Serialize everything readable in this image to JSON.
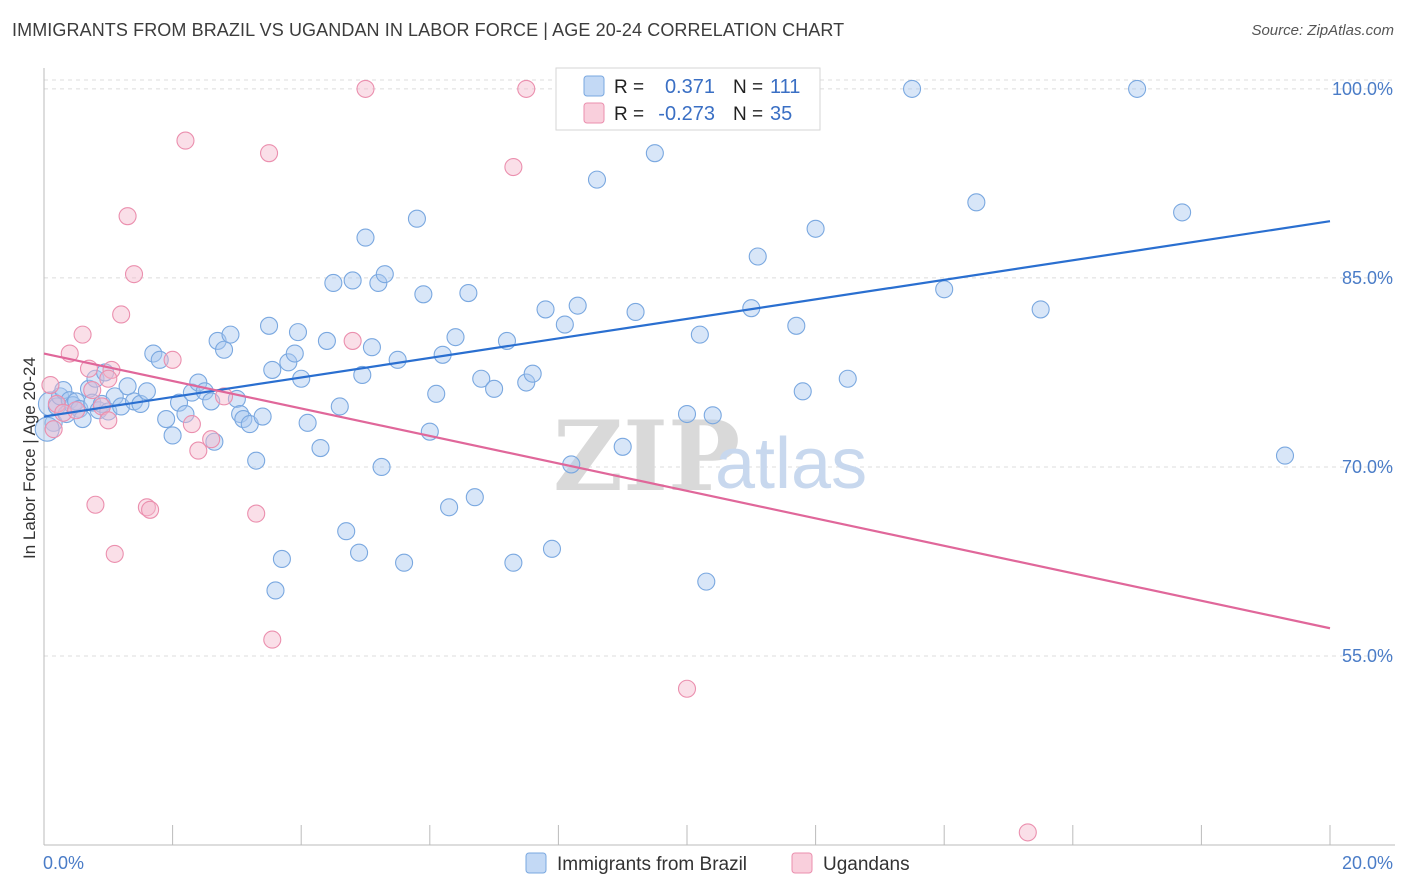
{
  "header": {
    "title": "IMMIGRANTS FROM BRAZIL VS UGANDAN IN LABOR FORCE | AGE 20-24 CORRELATION CHART",
    "source": "Source: ZipAtlas.com"
  },
  "watermark": {
    "zip": "ZIP",
    "atlas": "atlas"
  },
  "stats_legend": {
    "rows": [
      {
        "r_label": "R =",
        "r_value": "0.371",
        "n_label": "N =",
        "n_value": "111",
        "color": "#a9c8f0"
      },
      {
        "r_label": "R =",
        "r_value": "-0.273",
        "n_label": "N =",
        "n_value": "35",
        "color": "#f5b8cb"
      }
    ]
  },
  "bottom_legend": {
    "items": [
      {
        "label": "Immigrants from Brazil",
        "color": "#a9c8f0"
      },
      {
        "label": "Ugandans",
        "color": "#f5b8cb"
      }
    ]
  },
  "chart_data": {
    "type": "scatter",
    "title": "IMMIGRANTS FROM BRAZIL VS UGANDAN IN LABOR FORCE | AGE 20-24 CORRELATION CHART",
    "xlabel": "",
    "ylabel": "In Labor Force | Age 20-24",
    "xlim": [
      0,
      20
    ],
    "ylim": [
      40,
      101.5
    ],
    "x_tick_labels": [
      "0.0%",
      "20.0%"
    ],
    "y_ticks": [
      55,
      70,
      85,
      100
    ],
    "y_tick_labels": [
      "55.0%",
      "70.0%",
      "85.0%",
      "100.0%"
    ],
    "grid": true,
    "legend_position": "bottom",
    "series": [
      {
        "name": "Immigrants from Brazil",
        "color": "#a9c8f0",
        "stroke": "#7aa8e0",
        "trend": {
          "x0": 0,
          "y0": 74.0,
          "x1": 20,
          "y1": 89.5,
          "color": "#2a6fd0"
        },
        "points": [
          [
            0.1,
            75.0
          ],
          [
            0.15,
            73.5
          ],
          [
            0.2,
            74.8
          ],
          [
            0.25,
            75.6
          ],
          [
            0.3,
            76.1
          ],
          [
            0.35,
            74.2
          ],
          [
            0.4,
            75.3
          ],
          [
            0.45,
            74.9
          ],
          [
            0.5,
            75.2
          ],
          [
            0.55,
            74.6
          ],
          [
            0.6,
            73.8
          ],
          [
            0.7,
            76.2
          ],
          [
            0.75,
            75.1
          ],
          [
            0.8,
            77.0
          ],
          [
            0.85,
            74.5
          ],
          [
            0.9,
            75.0
          ],
          [
            0.95,
            77.5
          ],
          [
            1.0,
            74.4
          ],
          [
            1.1,
            75.6
          ],
          [
            1.2,
            74.8
          ],
          [
            1.3,
            76.4
          ],
          [
            1.4,
            75.2
          ],
          [
            1.5,
            75.0
          ],
          [
            1.6,
            76.0
          ],
          [
            1.7,
            79.0
          ],
          [
            1.8,
            78.5
          ],
          [
            1.9,
            73.8
          ],
          [
            2.0,
            72.5
          ],
          [
            2.1,
            75.1
          ],
          [
            2.2,
            74.2
          ],
          [
            2.3,
            75.9
          ],
          [
            2.4,
            76.7
          ],
          [
            2.5,
            76.0
          ],
          [
            2.6,
            75.2
          ],
          [
            2.65,
            72.0
          ],
          [
            2.7,
            80.0
          ],
          [
            2.8,
            79.3
          ],
          [
            2.9,
            80.5
          ],
          [
            3.0,
            75.4
          ],
          [
            3.05,
            74.2
          ],
          [
            3.1,
            73.8
          ],
          [
            3.2,
            73.4
          ],
          [
            3.3,
            70.5
          ],
          [
            3.4,
            74.0
          ],
          [
            3.5,
            81.2
          ],
          [
            3.55,
            77.7
          ],
          [
            3.6,
            60.2
          ],
          [
            3.7,
            62.7
          ],
          [
            3.8,
            78.3
          ],
          [
            3.9,
            79.0
          ],
          [
            3.95,
            80.7
          ],
          [
            4.0,
            77.0
          ],
          [
            4.1,
            73.5
          ],
          [
            4.3,
            71.5
          ],
          [
            4.4,
            80.0
          ],
          [
            4.5,
            84.6
          ],
          [
            4.6,
            74.8
          ],
          [
            4.7,
            64.9
          ],
          [
            4.8,
            84.8
          ],
          [
            4.9,
            63.2
          ],
          [
            4.95,
            77.3
          ],
          [
            5.0,
            88.2
          ],
          [
            5.1,
            79.5
          ],
          [
            5.2,
            84.6
          ],
          [
            5.25,
            70.0
          ],
          [
            5.3,
            85.3
          ],
          [
            5.5,
            78.5
          ],
          [
            5.6,
            62.4
          ],
          [
            5.8,
            89.7
          ],
          [
            5.9,
            83.7
          ],
          [
            6.0,
            72.8
          ],
          [
            6.1,
            75.8
          ],
          [
            6.2,
            78.9
          ],
          [
            6.3,
            66.8
          ],
          [
            6.4,
            80.3
          ],
          [
            6.6,
            83.8
          ],
          [
            6.7,
            67.6
          ],
          [
            6.8,
            77.0
          ],
          [
            7.0,
            76.2
          ],
          [
            7.2,
            80.0
          ],
          [
            7.3,
            62.4
          ],
          [
            7.5,
            76.7
          ],
          [
            7.6,
            77.4
          ],
          [
            7.8,
            82.5
          ],
          [
            7.9,
            63.5
          ],
          [
            8.1,
            81.3
          ],
          [
            8.2,
            70.2
          ],
          [
            8.3,
            82.8
          ],
          [
            8.6,
            92.8
          ],
          [
            8.8,
            100.0
          ],
          [
            9.0,
            71.6
          ],
          [
            9.2,
            82.3
          ],
          [
            9.5,
            94.9
          ],
          [
            10.0,
            74.2
          ],
          [
            10.2,
            80.5
          ],
          [
            10.3,
            60.9
          ],
          [
            10.4,
            74.1
          ],
          [
            11.0,
            82.6
          ],
          [
            11.1,
            86.7
          ],
          [
            11.7,
            81.2
          ],
          [
            11.8,
            76.0
          ],
          [
            12.0,
            88.9
          ],
          [
            12.5,
            77.0
          ],
          [
            13.5,
            100.0
          ],
          [
            14.0,
            84.1
          ],
          [
            14.5,
            91.0
          ],
          [
            15.5,
            82.5
          ],
          [
            17.0,
            100.0
          ],
          [
            17.7,
            90.2
          ],
          [
            19.3,
            70.9
          ],
          [
            0.05,
            73.0
          ]
        ]
      },
      {
        "name": "Ugandans",
        "color": "#f5b8cb",
        "stroke": "#eb8fae",
        "trend": {
          "x0": 0,
          "y0": 79.0,
          "x1": 20,
          "y1": 57.2,
          "color": "#e0679a"
        },
        "points": [
          [
            0.1,
            76.5
          ],
          [
            0.2,
            75.0
          ],
          [
            0.3,
            74.3
          ],
          [
            0.4,
            79.0
          ],
          [
            0.5,
            74.5
          ],
          [
            0.6,
            80.5
          ],
          [
            0.7,
            77.8
          ],
          [
            0.75,
            76.1
          ],
          [
            0.8,
            67.0
          ],
          [
            0.9,
            74.8
          ],
          [
            1.0,
            73.7
          ],
          [
            1.05,
            77.7
          ],
          [
            1.1,
            63.1
          ],
          [
            1.2,
            82.1
          ],
          [
            1.3,
            89.9
          ],
          [
            1.4,
            85.3
          ],
          [
            1.6,
            66.8
          ],
          [
            1.65,
            66.6
          ],
          [
            2.0,
            78.5
          ],
          [
            2.2,
            95.9
          ],
          [
            2.3,
            73.4
          ],
          [
            2.4,
            71.3
          ],
          [
            2.6,
            72.2
          ],
          [
            2.8,
            75.6
          ],
          [
            3.3,
            66.3
          ],
          [
            3.5,
            94.9
          ],
          [
            3.55,
            56.3
          ],
          [
            4.8,
            80.0
          ],
          [
            5.0,
            100.0
          ],
          [
            7.3,
            93.8
          ],
          [
            7.5,
            100.0
          ],
          [
            10.0,
            52.4
          ],
          [
            15.3,
            41.0
          ],
          [
            0.15,
            73.0
          ],
          [
            1.0,
            77.0
          ]
        ]
      }
    ]
  }
}
